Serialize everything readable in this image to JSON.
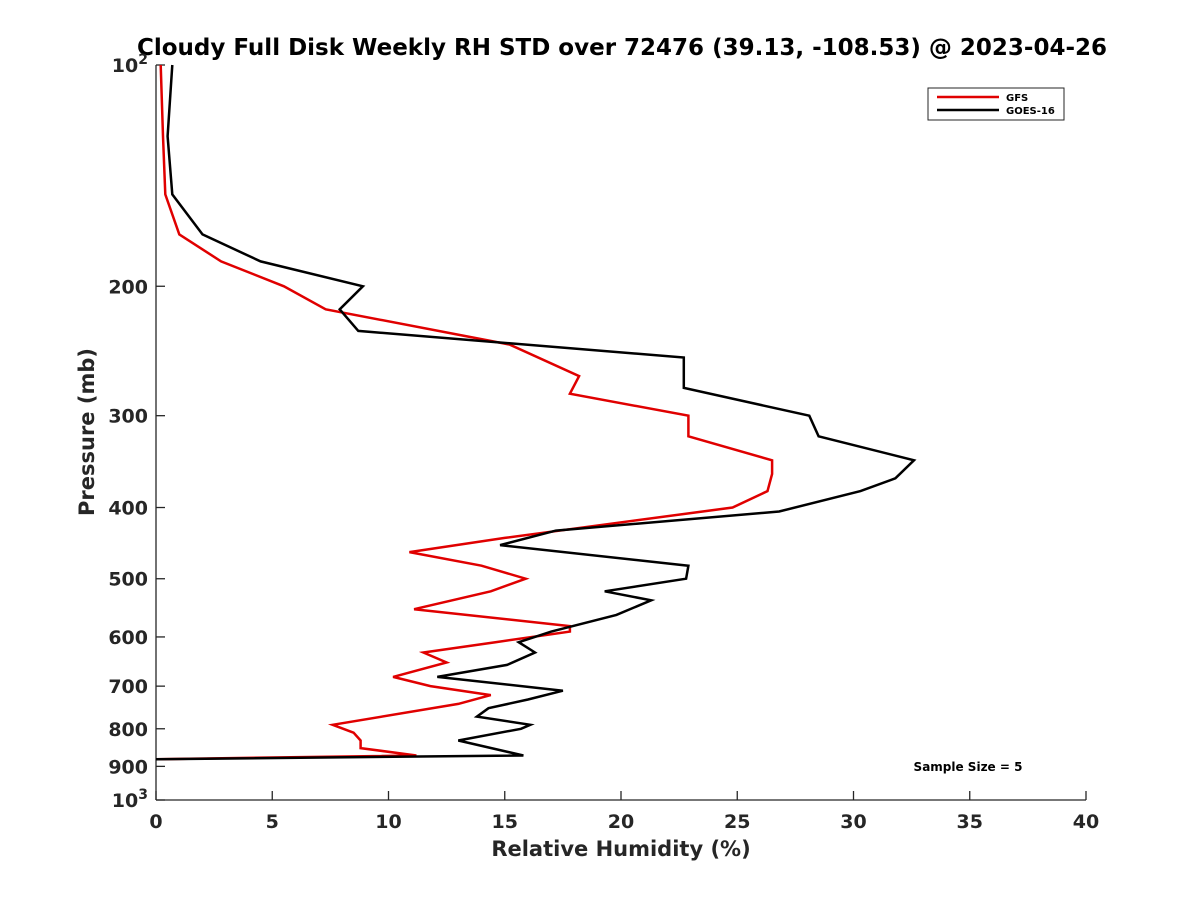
{
  "chart_data": {
    "type": "line",
    "title": "Cloudy Full Disk Weekly RH STD over 72476 (39.13, -108.53) @ 2023-04-26",
    "xlabel": "Relative Humidity (%)",
    "ylabel": "Pressure (mb)",
    "xlim": [
      0,
      40
    ],
    "ylim": [
      100,
      1000
    ],
    "y_scale": "log",
    "y_reversed": true,
    "grid": false,
    "legend_position": "top-right",
    "x_ticks": [
      0,
      5,
      10,
      15,
      20,
      25,
      30,
      35,
      40
    ],
    "x_tick_labels": [
      "0",
      "5",
      "10",
      "15",
      "20",
      "25",
      "30",
      "35",
      "40"
    ],
    "y_ticks": [
      100,
      200,
      300,
      400,
      500,
      600,
      700,
      800,
      900,
      1000
    ],
    "y_tick_labels": [
      {
        "base": "10",
        "exp": "2"
      },
      {
        "base": "200",
        "exp": ""
      },
      {
        "base": "300",
        "exp": ""
      },
      {
        "base": "400",
        "exp": ""
      },
      {
        "base": "500",
        "exp": ""
      },
      {
        "base": "600",
        "exp": ""
      },
      {
        "base": "700",
        "exp": ""
      },
      {
        "base": "800",
        "exp": ""
      },
      {
        "base": "900",
        "exp": ""
      },
      {
        "base": "10",
        "exp": "3"
      }
    ],
    "series": [
      {
        "name": "GFS",
        "color": "#e00000",
        "points": [
          [
            0.2,
            100
          ],
          [
            0.3,
            125
          ],
          [
            0.4,
            150
          ],
          [
            1.0,
            170
          ],
          [
            2.8,
            185
          ],
          [
            5.5,
            200
          ],
          [
            7.3,
            215
          ],
          [
            15.2,
            240
          ],
          [
            18.2,
            265
          ],
          [
            17.8,
            280
          ],
          [
            22.9,
            300
          ],
          [
            22.9,
            320
          ],
          [
            26.5,
            345
          ],
          [
            26.5,
            360
          ],
          [
            26.3,
            380
          ],
          [
            24.8,
            400
          ],
          [
            15.0,
            440
          ],
          [
            10.9,
            460
          ],
          [
            14.0,
            480
          ],
          [
            15.9,
            500
          ],
          [
            14.4,
            520
          ],
          [
            11.1,
            550
          ],
          [
            17.8,
            580
          ],
          [
            17.8,
            590
          ],
          [
            14.6,
            610
          ],
          [
            11.5,
            630
          ],
          [
            12.5,
            650
          ],
          [
            10.2,
            680
          ],
          [
            11.8,
            700
          ],
          [
            14.4,
            720
          ],
          [
            13.0,
            740
          ],
          [
            7.6,
            790
          ],
          [
            8.5,
            810
          ],
          [
            8.8,
            830
          ],
          [
            8.8,
            850
          ],
          [
            11.2,
            870
          ],
          [
            0.0,
            880
          ]
        ]
      },
      {
        "name": "GOES-16",
        "color": "#000000",
        "points": [
          [
            0.7,
            100
          ],
          [
            0.5,
            125
          ],
          [
            0.7,
            150
          ],
          [
            2.0,
            170
          ],
          [
            4.5,
            185
          ],
          [
            8.9,
            200
          ],
          [
            7.9,
            215
          ],
          [
            8.7,
            230
          ],
          [
            22.7,
            250
          ],
          [
            22.7,
            275
          ],
          [
            28.1,
            300
          ],
          [
            28.5,
            320
          ],
          [
            32.6,
            345
          ],
          [
            31.8,
            365
          ],
          [
            30.3,
            380
          ],
          [
            26.8,
            405
          ],
          [
            17.2,
            430
          ],
          [
            14.8,
            450
          ],
          [
            22.9,
            480
          ],
          [
            22.8,
            500
          ],
          [
            19.3,
            520
          ],
          [
            21.3,
            535
          ],
          [
            19.8,
            560
          ],
          [
            17.0,
            590
          ],
          [
            15.6,
            610
          ],
          [
            16.3,
            630
          ],
          [
            15.1,
            655
          ],
          [
            12.1,
            680
          ],
          [
            17.5,
            710
          ],
          [
            16.0,
            730
          ],
          [
            14.3,
            750
          ],
          [
            13.8,
            770
          ],
          [
            16.1,
            790
          ],
          [
            15.7,
            800
          ],
          [
            13.0,
            830
          ],
          [
            15.8,
            870
          ],
          [
            0.0,
            880
          ]
        ]
      }
    ],
    "annotation": "Sample Size = 5"
  }
}
